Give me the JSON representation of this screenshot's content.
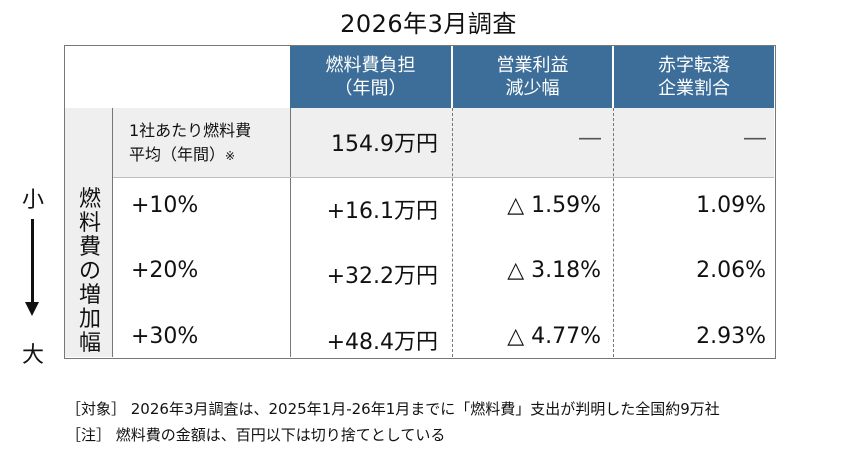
{
  "title": "2026年3月調査",
  "side_labels": {
    "small": "小",
    "big": "大"
  },
  "table": {
    "headers": [
      {
        "line1": "燃料費負担",
        "line2": "（年間）"
      },
      {
        "line1": "営業利益",
        "line2": "減少幅"
      },
      {
        "line1": "赤字転落",
        "line2": "企業割合"
      }
    ],
    "average_row": {
      "label_line1": "1社あたり燃料費",
      "label_line2": "平均（年間）",
      "label_note": "※",
      "fuel": "154.9万円",
      "profit": "―",
      "deficit": "―"
    },
    "increase_group_label": [
      "燃",
      "料",
      "費",
      "の",
      "増",
      "加",
      "幅"
    ],
    "rows": [
      {
        "increase": "+10%",
        "fuel": "+16.1万円",
        "profit": "△ 1.59%",
        "deficit": "1.09%"
      },
      {
        "increase": "+20%",
        "fuel": "+32.2万円",
        "profit": "△ 3.18%",
        "deficit": "2.06%"
      },
      {
        "increase": "+30%",
        "fuel": "+48.4万円",
        "profit": "△ 4.77%",
        "deficit": "2.93%"
      }
    ]
  },
  "footnotes": [
    "［対象］ 2026年3月調査は、2025年1月-26年1月までに「燃料費」支出が判明した全国約9万社",
    "［注］ 燃料費の金額は、百円以下は切り捨てとしている"
  ]
}
